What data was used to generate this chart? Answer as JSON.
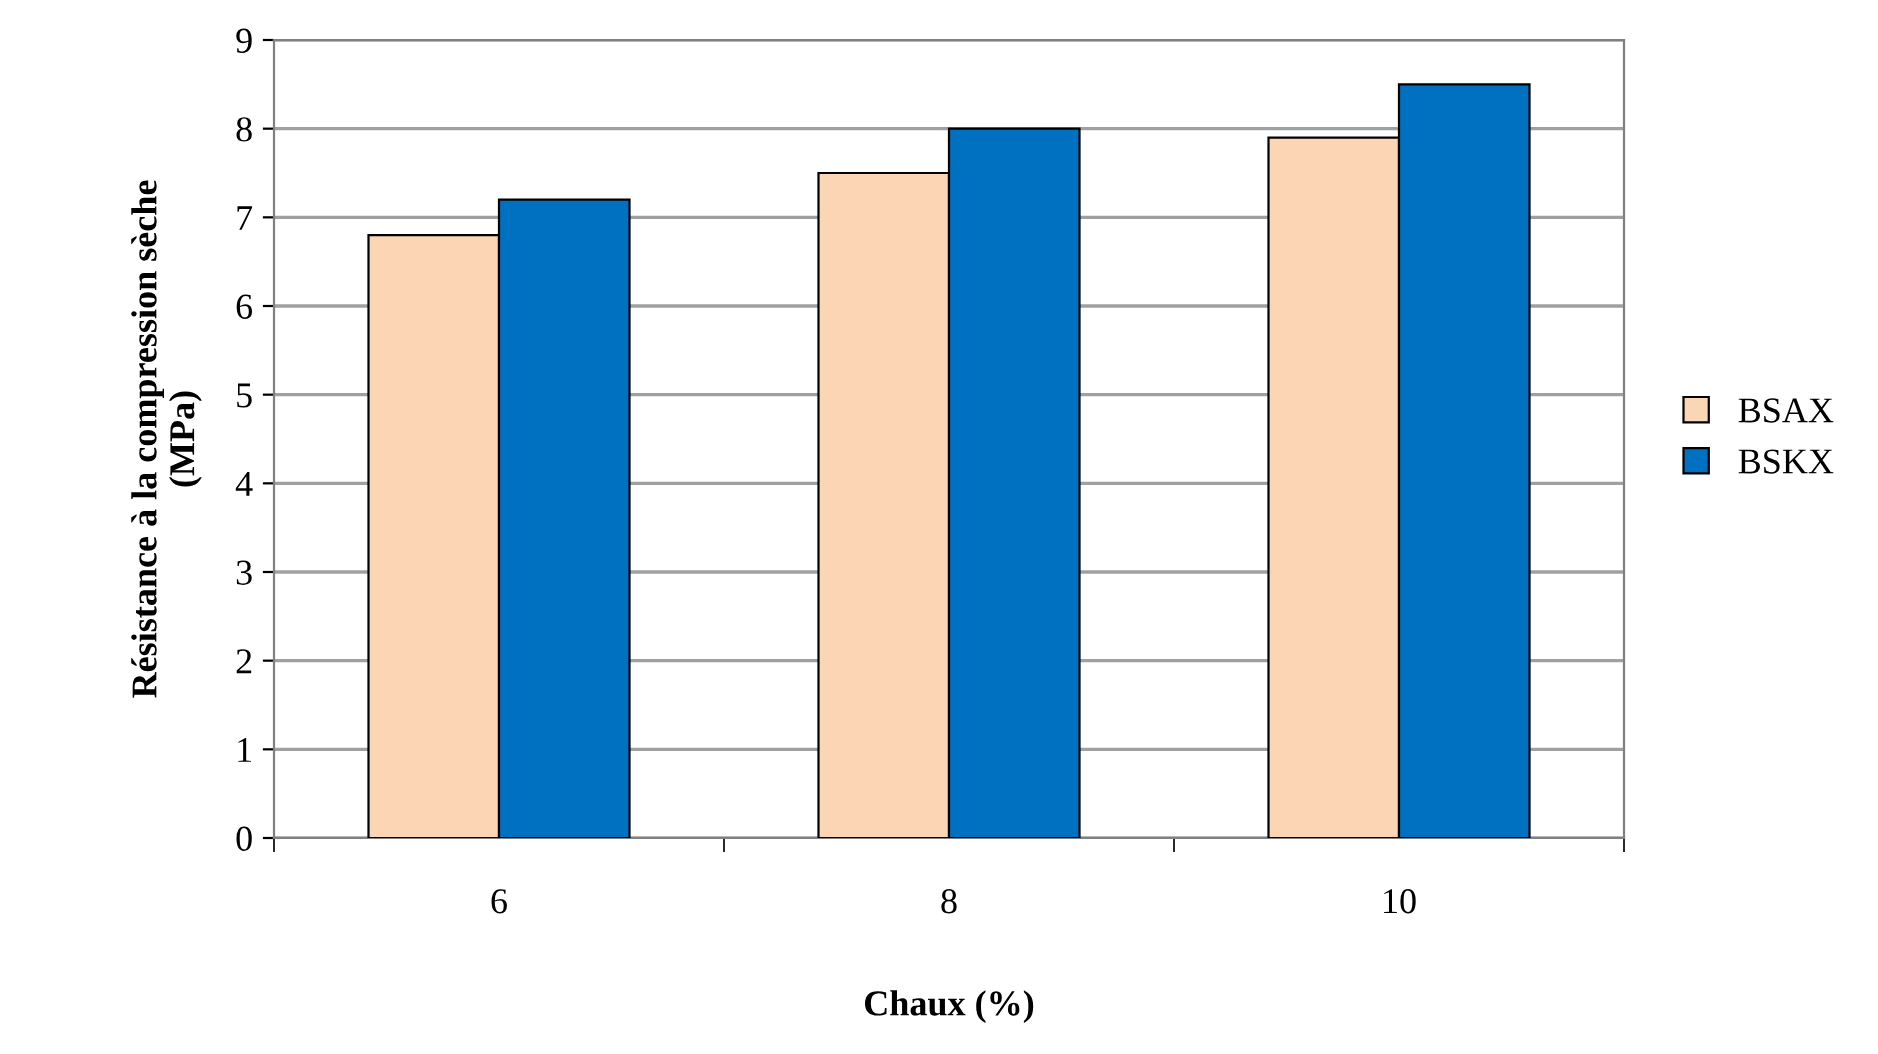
{
  "chart_data": {
    "type": "bar",
    "xlabel": "Chaux (%)",
    "ylabel": "Résistance à la compression sèche\n(MPa)",
    "categories": [
      "6",
      "8",
      "10"
    ],
    "series": [
      {
        "name": "BSAX",
        "color": "#fcd5b4",
        "values": [
          6.8,
          7.5,
          7.9
        ]
      },
      {
        "name": "BSKX",
        "color": "#0070c0",
        "values": [
          7.2,
          8.0,
          8.5
        ]
      }
    ],
    "ylim": [
      0,
      9
    ],
    "yticks": [
      0,
      1,
      2,
      3,
      4,
      5,
      6,
      7,
      8,
      9
    ],
    "grid": "y",
    "legend": "right"
  }
}
